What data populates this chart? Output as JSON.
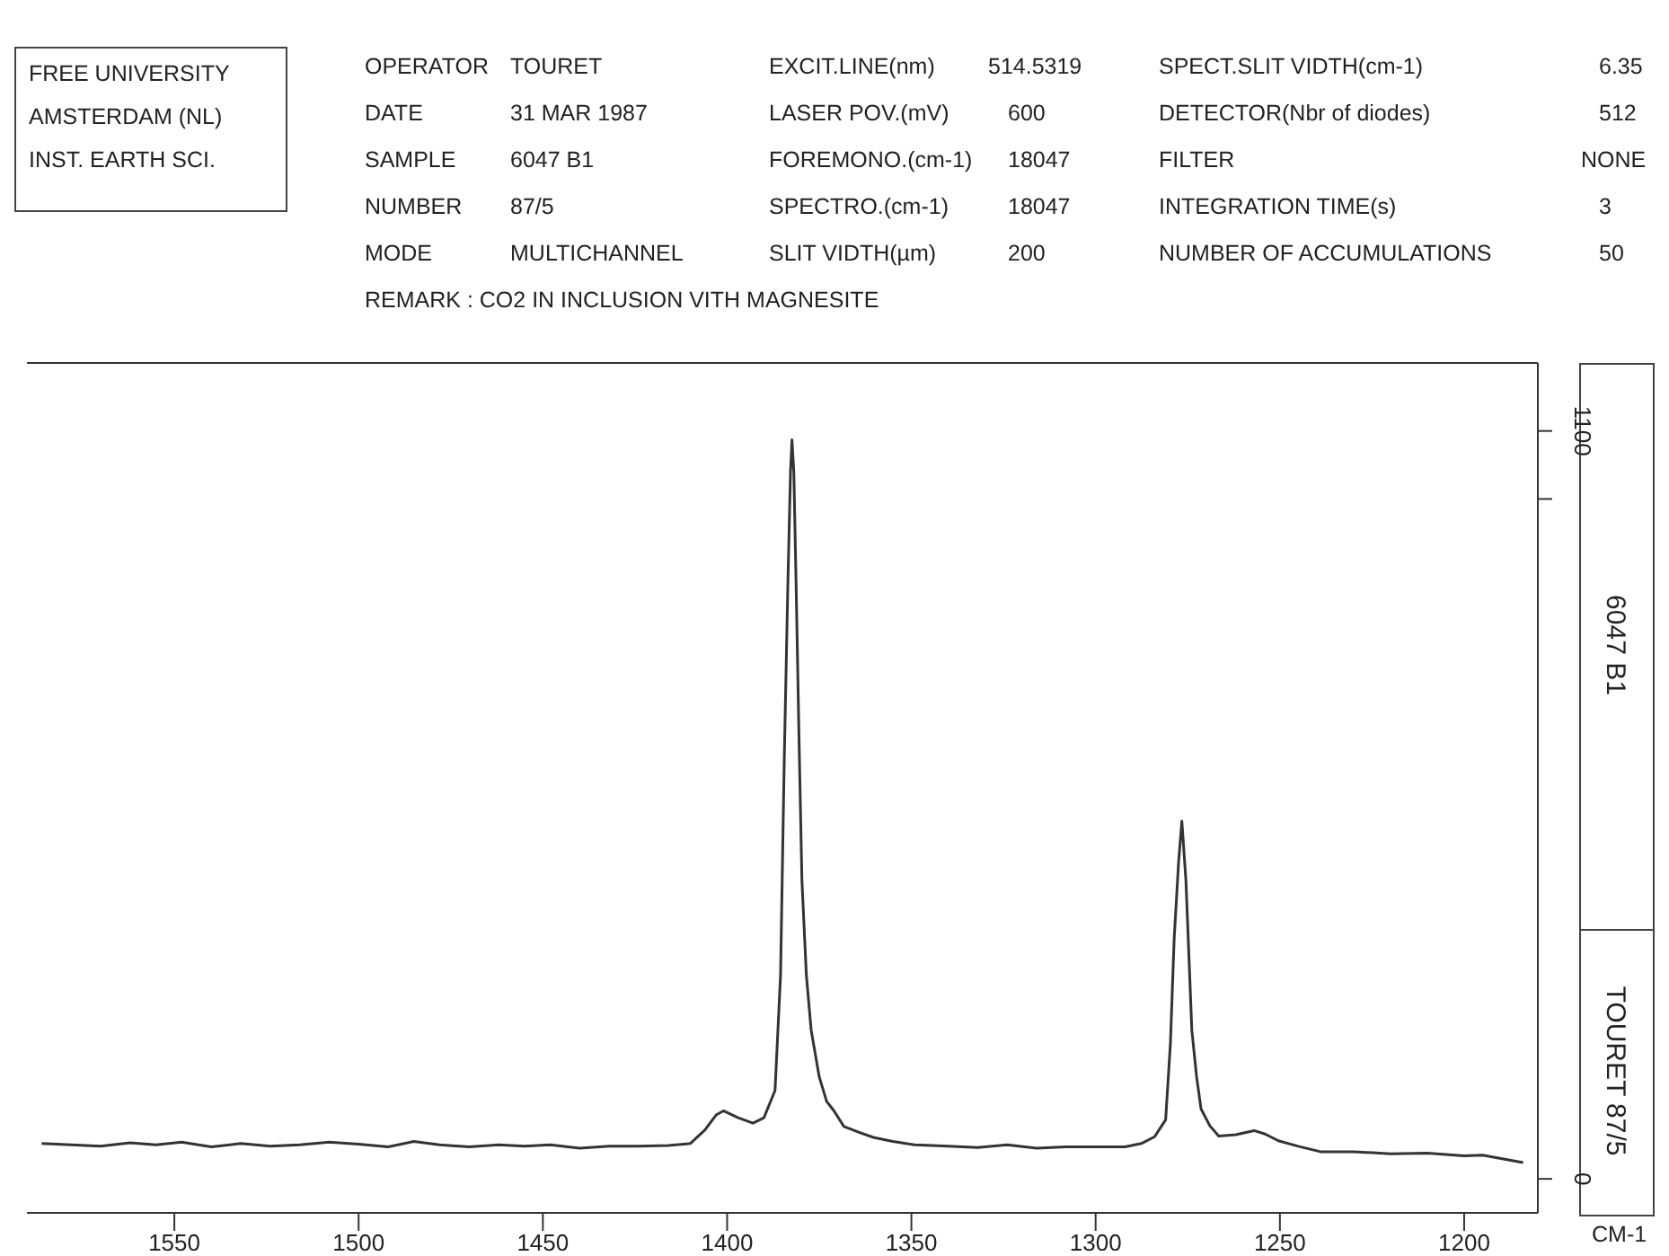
{
  "chart_data": {
    "type": "line",
    "xlabel": "CM-1",
    "annotations": [
      "FREE UNIVERSITY",
      "AMSTERDAM (NL)",
      "INST. EARTH SCI.",
      "OPERATOR",
      "TOURET",
      "DATE",
      "31 MAR 1987",
      "SAMPLE",
      "6047 B1",
      "NUMBER",
      "87/5",
      "MODE",
      "MULTICHANNEL",
      "REMARK : CO2 IN INCLUSION VITH MAGNESITE",
      "EXCIT.LINE(nm)",
      "514.5319",
      "LASER POV.(mV)",
      "600",
      "FOREMONO.(cm-1)",
      "18047",
      "SPECTRO.(cm-1)",
      "18047",
      "SLIT VIDTH(µm)",
      "200",
      "SPECT.SLIT VIDTH(cm-1)",
      "6.35",
      "DETECTOR(Nbr of diodes)",
      "512",
      "FILTER",
      "NONE",
      "INTEGRATION TIME(s)",
      "3",
      "NUMBER OF ACCUMULATIONS",
      "50",
      "6047 B1",
      "TOURET 87/5"
    ],
    "x": [
      1586,
      1578,
      1570,
      1562,
      1555,
      1548,
      1540,
      1532,
      1524,
      1516,
      1508,
      1500,
      1492,
      1485,
      1478,
      1470,
      1462,
      1455,
      1448,
      1440,
      1432,
      1424,
      1416,
      1410,
      1406,
      1403,
      1401,
      1397,
      1393,
      1390,
      1387,
      1385.5,
      1384.5,
      1383.5,
      1382.8,
      1382.4,
      1381.9,
      1381.3,
      1380.5,
      1379.7,
      1378.5,
      1377.2,
      1375,
      1373,
      1371,
      1368.3,
      1364,
      1360.3,
      1355,
      1349,
      1340,
      1332,
      1324,
      1316,
      1308,
      1300,
      1292,
      1287.6,
      1284,
      1281,
      1279.7,
      1278.7,
      1277.5,
      1276.6,
      1275.5,
      1274.7,
      1273.9,
      1272.6,
      1271.4,
      1269,
      1266.6,
      1262,
      1257,
      1254,
      1250.4,
      1245,
      1239,
      1230,
      1220,
      1210,
      1200,
      1195,
      1190,
      1184
    ],
    "series": [
      {
        "color": "#333333",
        "values": [
          52,
          50,
          48,
          53,
          50,
          54,
          47,
          52,
          48,
          50,
          54,
          51,
          47,
          55,
          50,
          47,
          50,
          48,
          50,
          45,
          48,
          48,
          49,
          52,
          72,
          94,
          100,
          90,
          82,
          90,
          130,
          300,
          616,
          880,
          1040,
          1087,
          1040,
          880,
          650,
          439,
          300,
          219,
          150,
          114,
          100,
          77,
          68,
          61,
          55,
          50,
          48,
          46,
          50,
          45,
          47,
          47,
          47,
          52,
          62,
          87,
          200,
          352,
          465,
          526,
          439,
          330,
          219,
          150,
          103,
          78,
          63,
          65,
          71,
          66,
          56,
          48,
          40,
          40,
          37,
          38,
          34,
          35,
          30,
          24
        ]
      }
    ],
    "xlim": [
      1590,
      1180
    ],
    "xticks": [
      1550,
      1500,
      1450,
      1400,
      1350,
      1300,
      1250,
      1200
    ],
    "ylim": [
      -50,
      1200
    ],
    "yticks": [
      0,
      {
        "value": 1000,
        "label": null
      },
      1100
    ],
    "grid": false,
    "legend": false,
    "marker": "none",
    "line_style": "solid"
  }
}
